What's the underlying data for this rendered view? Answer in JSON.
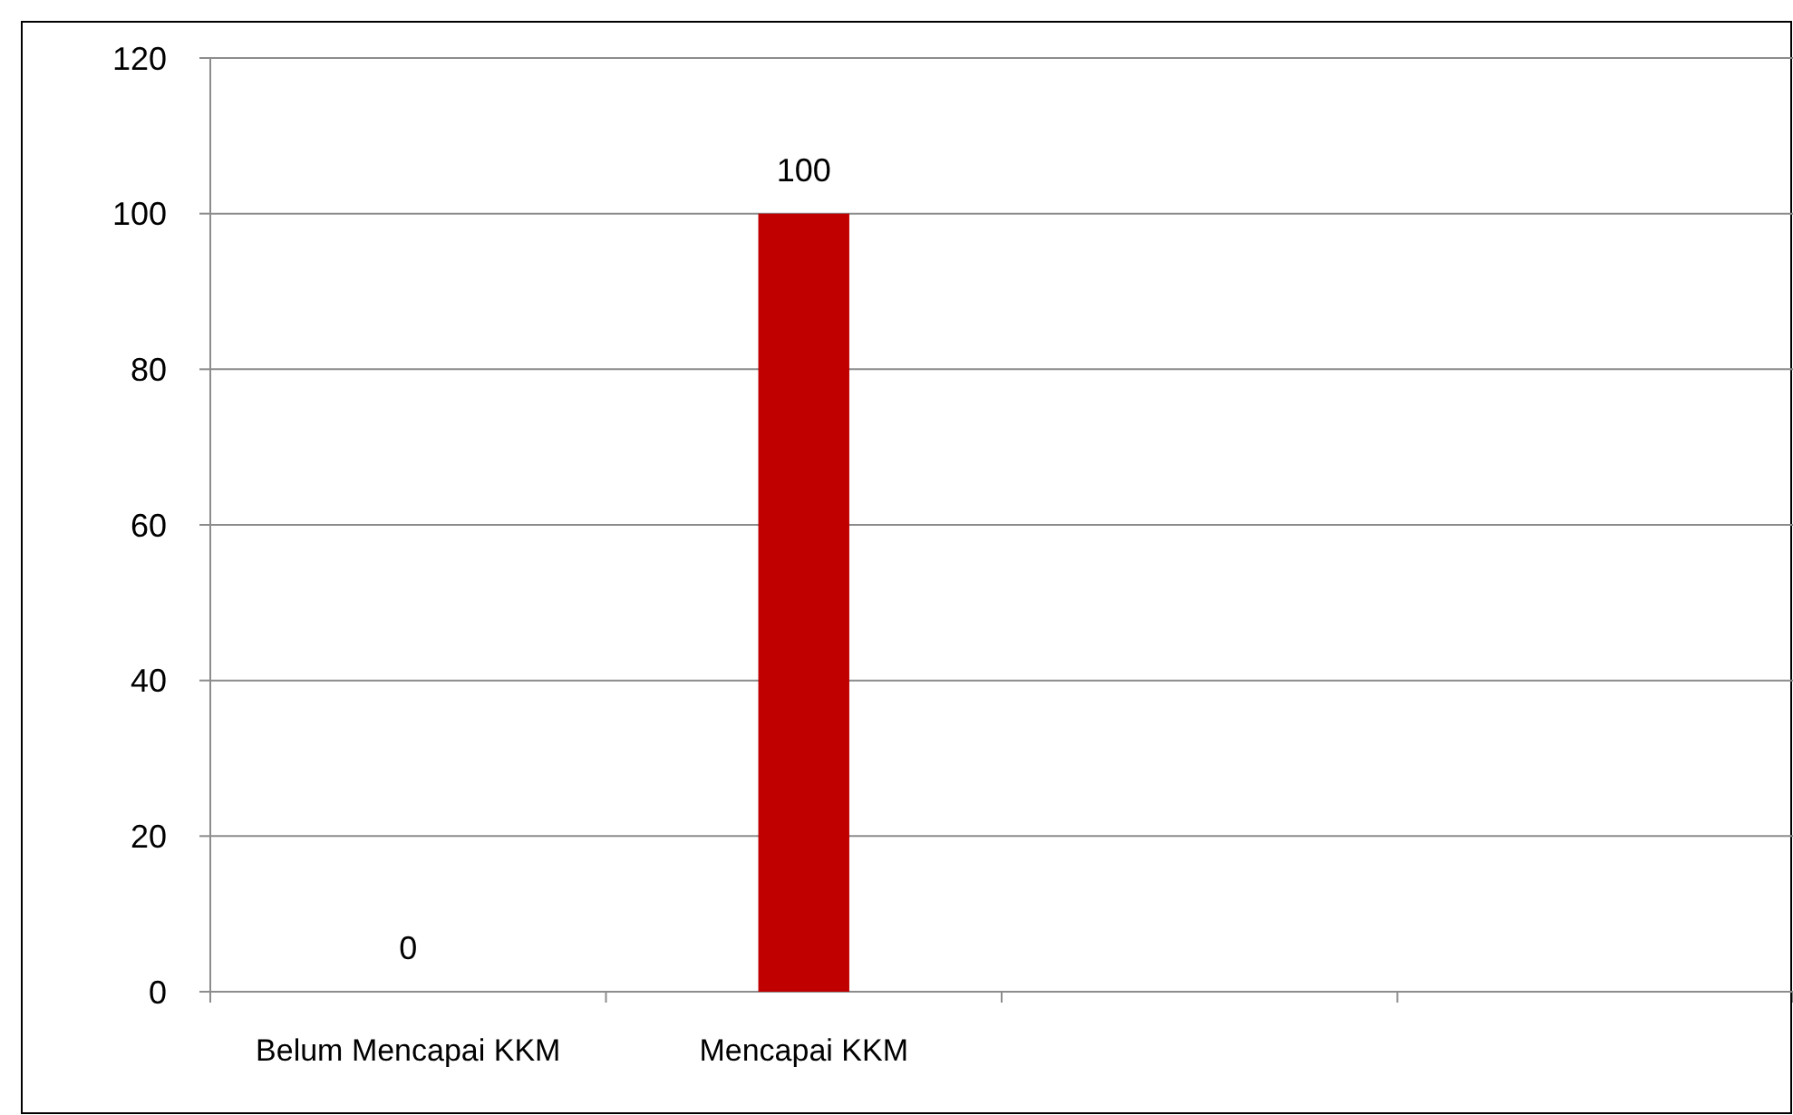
{
  "chart_data": {
    "type": "bar",
    "categories": [
      "Belum Mencapai KKM",
      "Mencapai KKM",
      null,
      null
    ],
    "values": [
      0,
      100,
      null,
      null
    ],
    "color": "#c00000",
    "ylim": [
      0,
      120
    ],
    "yticks": [
      0,
      20,
      40,
      60,
      80,
      100,
      120
    ],
    "grid": "y",
    "data_labels": true
  }
}
